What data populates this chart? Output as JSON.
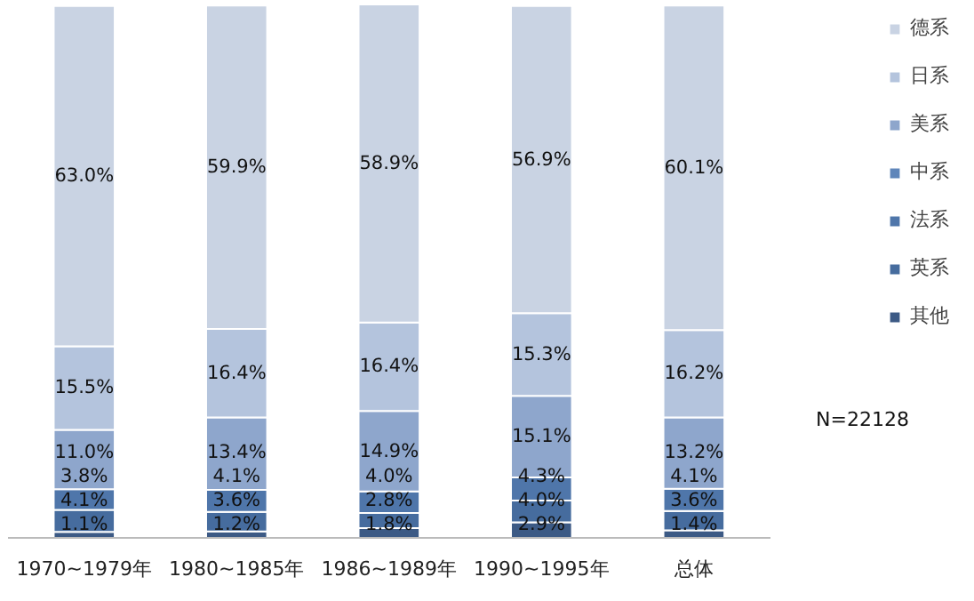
{
  "chart_data": {
    "type": "bar",
    "stacked": true,
    "categories": [
      "1970~1979年",
      "1980~1985年",
      "1986~1989年",
      "1990~1995年",
      "总体"
    ],
    "series": [
      {
        "name": "其他",
        "color": "#3c5a85",
        "values": [
          1.1,
          1.2,
          1.8,
          2.9,
          1.4
        ],
        "value_labels": [
          "1.1%",
          "1.2%",
          "1.8%",
          "2.9%",
          "1.4%"
        ]
      },
      {
        "name": "英系",
        "color": "#466c9e",
        "values": [
          4.1,
          3.6,
          2.8,
          4.0,
          3.6
        ],
        "value_labels": [
          "4.1%",
          "3.6%",
          "2.8%",
          "4.0%",
          "3.6%"
        ]
      },
      {
        "name": "法系",
        "color": "#4f76aa",
        "values": [
          3.8,
          4.1,
          4.0,
          4.3,
          4.1
        ],
        "value_labels": [
          "3.8%",
          "4.1%",
          "4.0%",
          "4.3%",
          "4.1%"
        ]
      },
      {
        "name": "中系",
        "color": "#5f86ba",
        "values": [
          null,
          null,
          null,
          null,
          null
        ]
      },
      {
        "name": "美系",
        "color": "#8ea6cc",
        "values": [
          11.0,
          13.4,
          14.9,
          15.1,
          13.2
        ],
        "value_labels": [
          "11.0%",
          "13.4%",
          "14.9%",
          "15.1%",
          "13.2%"
        ]
      },
      {
        "name": "日系",
        "color": "#b4c4dd",
        "values": [
          15.5,
          16.4,
          16.4,
          15.3,
          16.2
        ],
        "value_labels": [
          "15.5%",
          "16.4%",
          "16.4%",
          "15.3%",
          "16.2%"
        ]
      },
      {
        "name": "德系",
        "color": "#c9d3e3",
        "values": [
          63.0,
          59.9,
          58.9,
          56.9,
          60.1
        ],
        "value_labels": [
          "63.0%",
          "59.9%",
          "58.9%",
          "56.9%",
          "60.1%"
        ]
      }
    ],
    "legend": "right",
    "grid": false,
    "tick_labels": "x",
    "annotations": [
      "N=22128"
    ]
  }
}
